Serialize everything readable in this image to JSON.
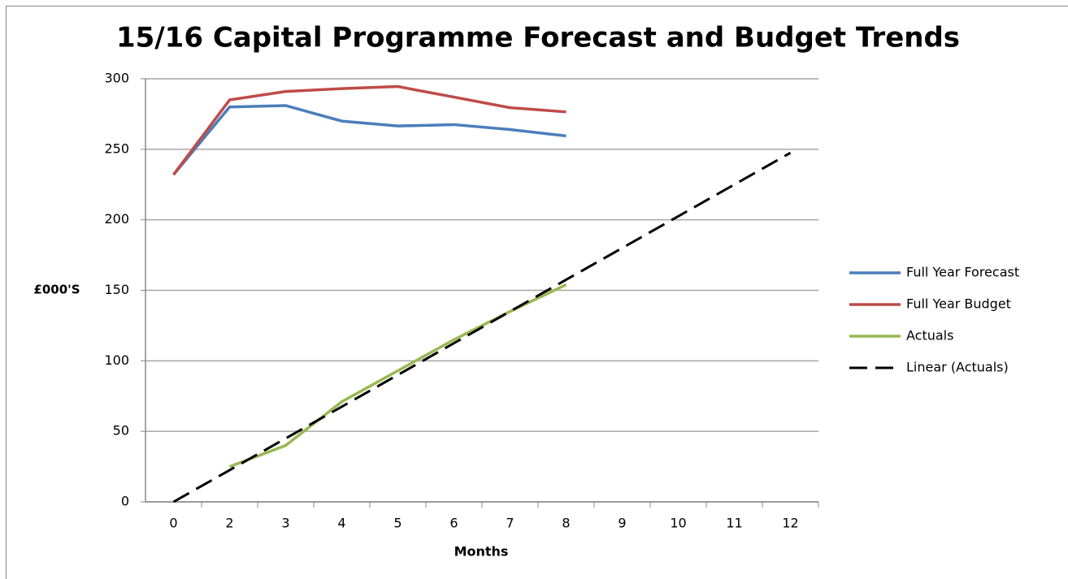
{
  "chart_data": {
    "type": "line",
    "title": "15/16 Capital Programme Forecast and Budget Trends",
    "x_label": "Months",
    "y_label": "£000'S",
    "categories": [
      "0",
      "2",
      "3",
      "4",
      "5",
      "6",
      "7",
      "8",
      "9",
      "10",
      "11",
      "12"
    ],
    "series": [
      {
        "name": "Full Year Forecast",
        "color": "#4a7ebb",
        "values": [
          232,
          280,
          281,
          270,
          266.5,
          267.5,
          264,
          259.5,
          null,
          null,
          null,
          null
        ]
      },
      {
        "name": "Full Year Budget",
        "color": "#be4b48",
        "values": [
          232,
          285,
          291,
          293,
          294.5,
          287,
          279.5,
          276.5,
          null,
          null,
          null,
          null
        ]
      },
      {
        "name": "Actuals",
        "color": "#98b954",
        "values": [
          null,
          25,
          40,
          71,
          93,
          115,
          135,
          154,
          null,
          null,
          null,
          null
        ]
      },
      {
        "name": "Linear (Actuals)",
        "color": "#000000",
        "dash": true,
        "values": [
          0,
          22.5,
          45,
          67.5,
          90,
          112.5,
          135,
          157.5,
          180,
          202.5,
          225,
          247.5
        ]
      }
    ],
    "ylim": [
      0,
      300
    ],
    "yticks": [
      0,
      50,
      100,
      150,
      200,
      250,
      300
    ],
    "grid": true,
    "legend": "right"
  }
}
